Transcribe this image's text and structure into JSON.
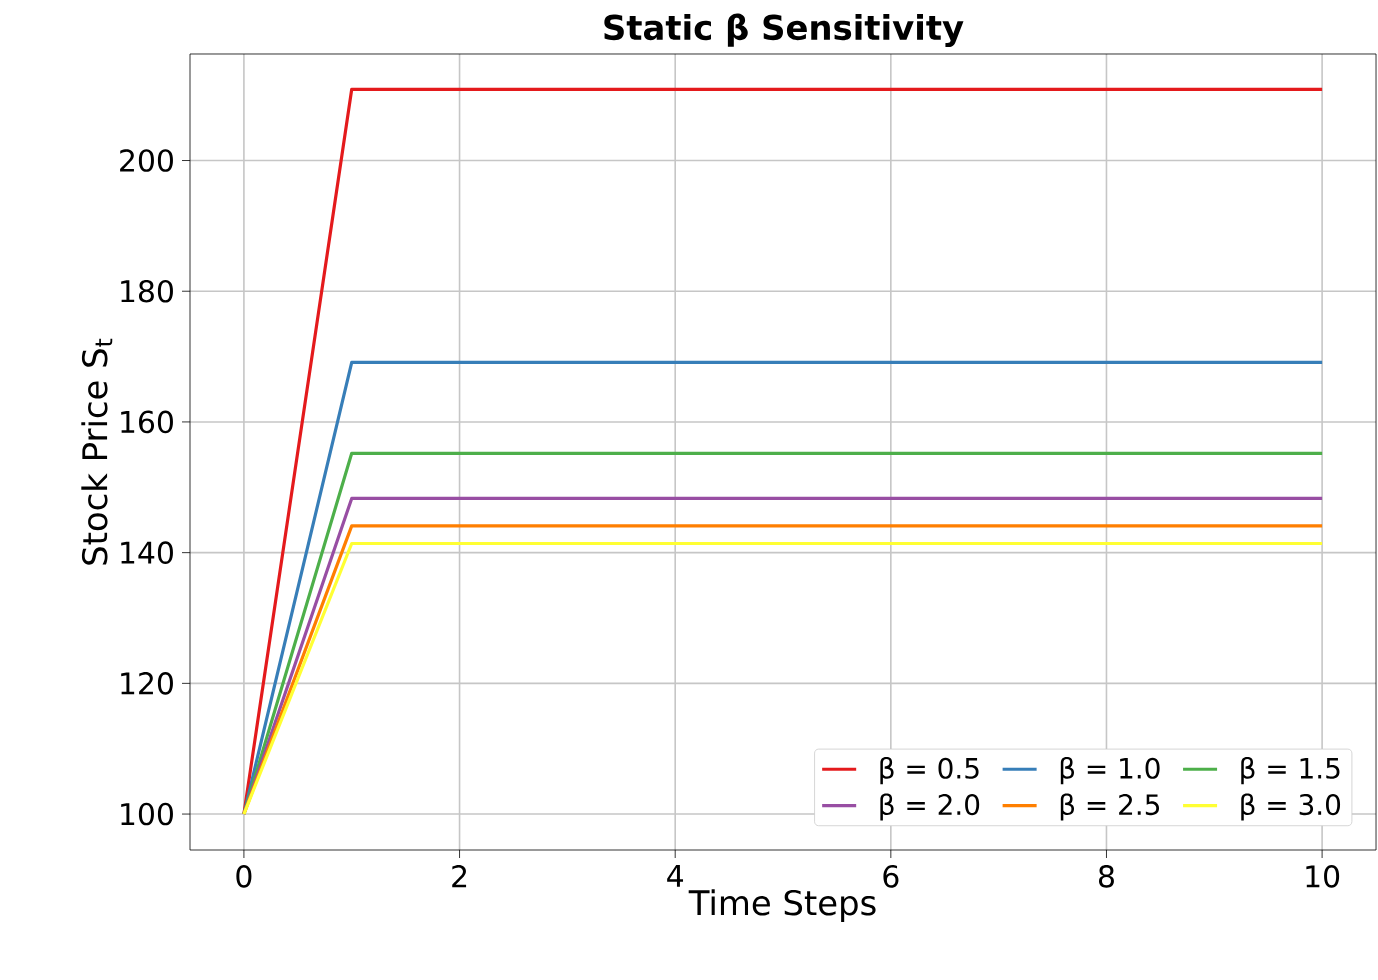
{
  "chart_data": {
    "type": "line",
    "title": "Static β Sensitivity",
    "xlabel": "Time Steps",
    "ylabel": "Stock Price S$_{t}$",
    "x": [
      0,
      1,
      2,
      3,
      4,
      5,
      6,
      7,
      8,
      9,
      10
    ],
    "series": [
      {
        "name": "β = 0.5",
        "color": "#e41a1c",
        "values": [
          100,
          210.9,
          210.9,
          210.9,
          210.9,
          210.9,
          210.9,
          210.9,
          210.9,
          210.9,
          210.9
        ]
      },
      {
        "name": "β = 1.0",
        "color": "#377eb8",
        "values": [
          100,
          169.1,
          169.1,
          169.1,
          169.1,
          169.1,
          169.1,
          169.1,
          169.1,
          169.1,
          169.1
        ]
      },
      {
        "name": "β = 1.5",
        "color": "#4daf4a",
        "values": [
          100,
          155.2,
          155.2,
          155.2,
          155.2,
          155.2,
          155.2,
          155.2,
          155.2,
          155.2,
          155.2
        ]
      },
      {
        "name": "β = 2.0",
        "color": "#984ea3",
        "values": [
          100,
          148.3,
          148.3,
          148.3,
          148.3,
          148.3,
          148.3,
          148.3,
          148.3,
          148.3,
          148.3
        ]
      },
      {
        "name": "β = 2.5",
        "color": "#ff7f00",
        "values": [
          100,
          144.1,
          144.1,
          144.1,
          144.1,
          144.1,
          144.1,
          144.1,
          144.1,
          144.1,
          144.1
        ]
      },
      {
        "name": "β = 3.0",
        "color": "#ffff33",
        "values": [
          100,
          141.4,
          141.4,
          141.4,
          141.4,
          141.4,
          141.4,
          141.4,
          141.4,
          141.4,
          141.4
        ]
      }
    ],
    "xlim": [
      -0.5,
      10.5
    ],
    "ylim": [
      94.5,
      216.3
    ],
    "xticks": [
      0,
      2,
      4,
      6,
      8,
      10
    ],
    "yticks": [
      100,
      120,
      140,
      160,
      180,
      200
    ],
    "grid": true,
    "legend": "bottom right",
    "marker": "none",
    "line_style": "solid"
  }
}
